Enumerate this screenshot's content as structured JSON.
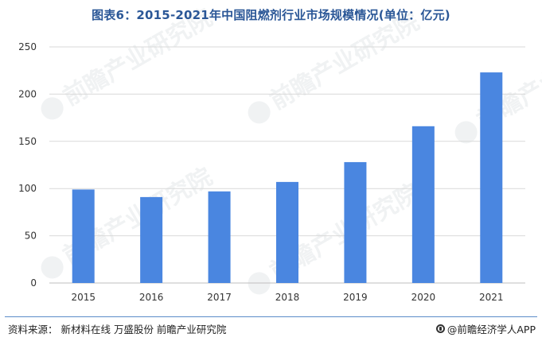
{
  "title": "图表6：2015-2021年中国阻燃剂行业市场规模情况(单位：亿元)",
  "watermark_text": "前瞻产业研究院",
  "chart_data": {
    "type": "bar",
    "categories": [
      "2015",
      "2016",
      "2017",
      "2018",
      "2019",
      "2020",
      "2021"
    ],
    "values": [
      99,
      91,
      97,
      107,
      128,
      166,
      223
    ],
    "ylim": [
      0,
      250
    ],
    "yticks": [
      "0",
      "50",
      "100",
      "150",
      "200",
      "250"
    ],
    "bar_color": "#4a86e0",
    "grid": true
  },
  "footer": {
    "source": "资料来源：  新材料在线 万盛股份  前瞻产业研究院",
    "brand": "@前瞻经济学人APP"
  }
}
